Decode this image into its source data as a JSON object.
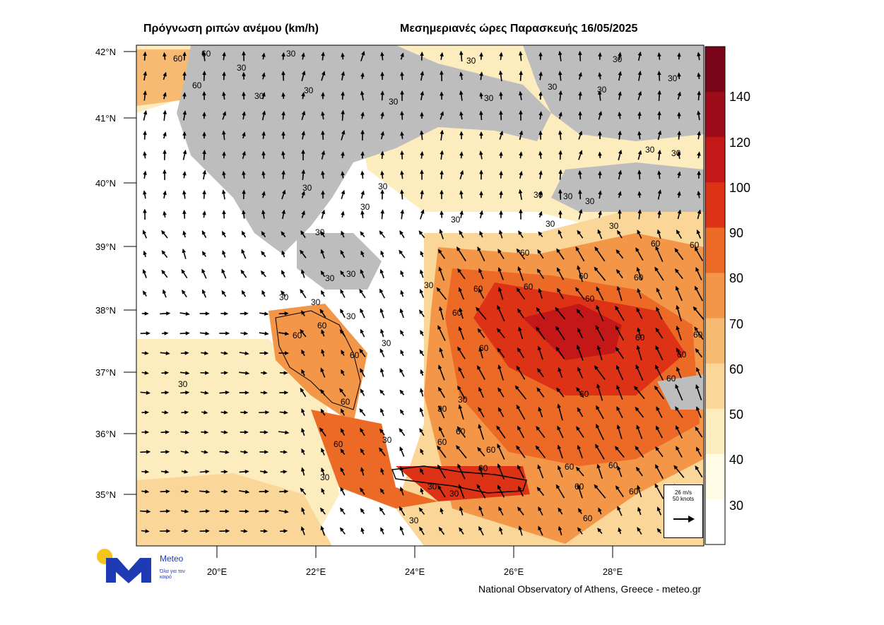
{
  "header": {
    "title_left": "Πρόγνωση ριπών ανέμου (km/h)",
    "title_right": "Μεσημεριανές ώρες Παρασκευής 16/05/2025"
  },
  "axes": {
    "lat_labels": [
      "42°N",
      "41°N",
      "40°N",
      "39°N",
      "38°N",
      "37°N",
      "36°N",
      "35°N"
    ],
    "lon_labels": [
      "20°E",
      "22°E",
      "24°E",
      "26°E",
      "28°E"
    ]
  },
  "colorbar": {
    "labels": [
      "140",
      "120",
      "100",
      "90",
      "80",
      "70",
      "60",
      "50",
      "40",
      "30"
    ],
    "colors": [
      "#7a0418",
      "#9e0c1c",
      "#c41818",
      "#de3216",
      "#ec6a26",
      "#f39648",
      "#f7ba72",
      "#fad698",
      "#fdecbd",
      "#fffbe4",
      "#ffffff"
    ]
  },
  "map": {
    "land_color": "#bdbdbd",
    "sea_color": "#ffffff",
    "contour_labels": [
      "30",
      "60"
    ]
  },
  "reference_vector": {
    "speed_ms": "26 m/s",
    "speed_knots": "50 knots"
  },
  "footer": {
    "credit": "National Observatory of Athens, Greece - meteo.gr",
    "logo_name": "Meteo",
    "logo_tagline": "Όλα για τον καιρό",
    "logo_colors": {
      "sun": "#f5c518",
      "mark": "#1e3bb5"
    }
  }
}
